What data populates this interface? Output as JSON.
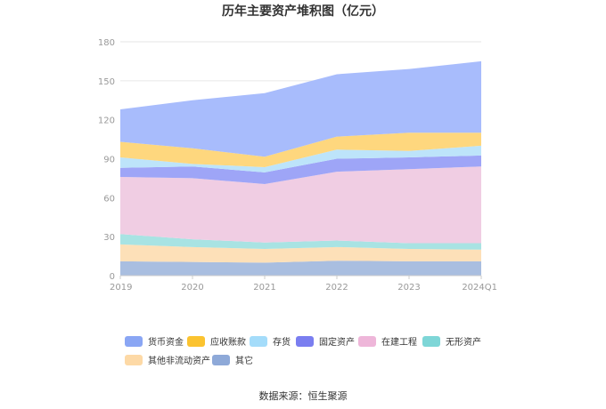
{
  "chart_data": {
    "type": "area",
    "stacked": true,
    "title": "历年主要资产堆积图（亿元）",
    "categories": [
      "2019",
      "2020",
      "2021",
      "2022",
      "2023",
      "2024Q1"
    ],
    "ylim": [
      0,
      180
    ],
    "yticks": [
      0,
      30,
      60,
      90,
      120,
      150,
      180
    ],
    "grid": true,
    "legend_position": "bottom",
    "series": [
      {
        "name": "其它",
        "color": "#a9bee0",
        "values": [
          11,
          10.5,
          10,
          11.5,
          11,
          11
        ]
      },
      {
        "name": "其他非流动资产",
        "color": "#fde0b8",
        "values": [
          13,
          11.5,
          10.5,
          10.5,
          9.5,
          9
        ]
      },
      {
        "name": "无形资产",
        "color": "#a8e3e3",
        "values": [
          8,
          6,
          5,
          5,
          4.5,
          5
        ]
      },
      {
        "name": "在建工程",
        "color": "#f0cde3",
        "values": [
          44,
          47,
          45,
          53,
          57,
          59
        ]
      },
      {
        "name": "固定资产",
        "color": "#9ea5f7",
        "values": [
          7,
          9,
          9,
          10,
          9,
          8.5
        ]
      },
      {
        "name": "存货",
        "color": "#bde4fa",
        "values": [
          8,
          2,
          4,
          7,
          5,
          7.5
        ]
      },
      {
        "name": "应收账款",
        "color": "#fed77e",
        "values": [
          12,
          12,
          8,
          10,
          14,
          10
        ]
      },
      {
        "name": "货币资金",
        "color": "#a8bcfc",
        "values": [
          25,
          37,
          49,
          48,
          49,
          55
        ]
      }
    ]
  },
  "legend_items": [
    "货币资金",
    "应收账款",
    "存货",
    "固定资产",
    "在建工程",
    "无形资产",
    "其他非流动资产",
    "其它"
  ],
  "legend_colors": [
    "#8aa6f4",
    "#fbc330",
    "#a4dcfa",
    "#7a7ef0",
    "#eeb6d9",
    "#7ed6d7",
    "#fdd9a6",
    "#8ea9d8"
  ],
  "source": "数据来源：恒生聚源"
}
